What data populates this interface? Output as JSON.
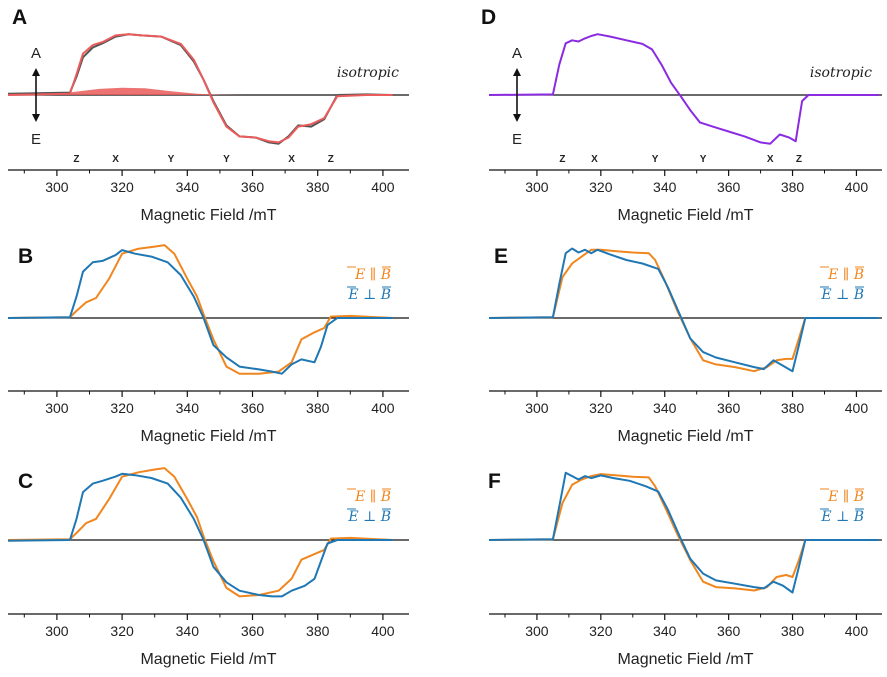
{
  "chart_data": [
    {
      "panel": "A",
      "type": "line",
      "xlabel": "Magnetic Field /mT",
      "xlim": [
        285,
        408
      ],
      "xticks": [
        300,
        320,
        340,
        360,
        380,
        400
      ],
      "ylim": [
        -1.1,
        1.2
      ],
      "axis_labels": {
        "top": "A",
        "bottom": "E"
      },
      "annotation": "isotropic",
      "canonical_markers": [
        {
          "label": "Z",
          "x": 306
        },
        {
          "label": "X",
          "x": 318
        },
        {
          "label": "Y",
          "x": 335
        },
        {
          "label": "Y",
          "x": 352
        },
        {
          "label": "X",
          "x": 372
        },
        {
          "label": "Z",
          "x": 384
        }
      ],
      "series": [
        {
          "color": "#555555",
          "width": 2.0,
          "x": [
            285,
            304,
            306,
            308,
            311,
            314,
            318,
            322,
            326,
            332,
            338,
            342,
            345,
            348,
            352,
            356,
            361,
            365,
            368,
            371,
            374,
            378,
            382,
            386,
            395,
            403
          ],
          "y": [
            0.02,
            0.04,
            0.3,
            0.62,
            0.78,
            0.85,
            0.96,
            1.0,
            0.98,
            0.96,
            0.82,
            0.55,
            0.25,
            -0.1,
            -0.5,
            -0.68,
            -0.7,
            -0.78,
            -0.8,
            -0.68,
            -0.5,
            -0.52,
            -0.4,
            0.0,
            0.01,
            0.0
          ]
        },
        {
          "color": "#ea5b5b",
          "width": 2.0,
          "x": [
            285,
            304,
            306,
            308,
            311,
            314,
            318,
            322,
            326,
            332,
            338,
            342,
            345,
            348,
            352,
            356,
            361,
            365,
            368,
            371,
            374,
            378,
            382,
            386,
            395,
            403
          ],
          "y": [
            0.0,
            0.02,
            0.34,
            0.68,
            0.82,
            0.87,
            0.98,
            1.0,
            0.98,
            0.96,
            0.84,
            0.58,
            0.25,
            -0.12,
            -0.52,
            -0.68,
            -0.7,
            -0.76,
            -0.78,
            -0.7,
            -0.52,
            -0.48,
            -0.38,
            -0.02,
            0.0,
            0.0
          ]
        }
      ],
      "fill": {
        "color": "#ea5b5b",
        "x": [
          285,
          295,
          305,
          313,
          320,
          327,
          335,
          343,
          350,
          358
        ],
        "y": [
          0.0,
          0.015,
          0.05,
          0.1,
          0.12,
          0.11,
          0.06,
          0.02,
          0.005,
          0.0
        ]
      }
    },
    {
      "panel": "B",
      "type": "line",
      "xlabel": "Magnetic Field /mT",
      "xlim": [
        285,
        408
      ],
      "xticks": [
        300,
        320,
        340,
        360,
        380,
        400
      ],
      "ylim": [
        -1.15,
        1.05
      ],
      "legend": [
        "E ∥ B",
        "E ⊥ B"
      ],
      "series": [
        {
          "color": "#f0861e",
          "width": 2.0,
          "x": [
            285,
            304,
            306,
            309,
            312,
            316,
            320,
            325,
            330,
            333,
            336,
            340,
            343,
            345,
            348,
            352,
            356,
            362,
            368,
            372,
            375,
            379,
            382,
            384,
            390,
            403
          ],
          "y": [
            0.0,
            0.01,
            0.1,
            0.22,
            0.28,
            0.55,
            0.9,
            0.97,
            1.0,
            1.02,
            0.9,
            0.55,
            0.3,
            0.05,
            -0.3,
            -0.68,
            -0.78,
            -0.78,
            -0.75,
            -0.62,
            -0.3,
            -0.2,
            -0.14,
            0.02,
            0.03,
            0.0
          ]
        },
        {
          "color": "#1f77b4",
          "width": 2.0,
          "x": [
            285,
            304,
            306,
            308,
            311,
            314,
            318,
            320,
            324,
            329,
            334,
            338,
            342,
            345,
            348,
            352,
            356,
            362,
            366,
            369,
            372,
            375,
            379,
            381,
            383,
            386,
            395,
            403
          ],
          "y": [
            0.0,
            0.01,
            0.3,
            0.65,
            0.78,
            0.8,
            0.88,
            0.95,
            0.9,
            0.86,
            0.78,
            0.6,
            0.3,
            0.0,
            -0.38,
            -0.55,
            -0.68,
            -0.72,
            -0.75,
            -0.78,
            -0.65,
            -0.58,
            -0.62,
            -0.4,
            -0.1,
            0.0,
            0.0,
            0.0
          ]
        }
      ]
    },
    {
      "panel": "C",
      "type": "line",
      "xlabel": "Magnetic Field /mT",
      "xlim": [
        285,
        408
      ],
      "xticks": [
        300,
        320,
        340,
        360,
        380,
        400
      ],
      "ylim": [
        -1.15,
        1.05
      ],
      "legend": [
        "E ∥ B",
        "E ⊥ B"
      ],
      "series": [
        {
          "color": "#f0861e",
          "width": 2.0,
          "x": [
            285,
            304,
            306,
            309,
            312,
            316,
            320,
            325,
            330,
            333,
            336,
            340,
            343,
            345,
            348,
            352,
            356,
            362,
            368,
            372,
            375,
            379,
            382,
            384,
            390,
            403
          ],
          "y": [
            0.0,
            0.01,
            0.1,
            0.24,
            0.3,
            0.58,
            0.9,
            0.96,
            1.0,
            1.02,
            0.9,
            0.58,
            0.32,
            0.05,
            -0.3,
            -0.68,
            -0.8,
            -0.78,
            -0.72,
            -0.55,
            -0.28,
            -0.2,
            -0.14,
            0.02,
            0.03,
            0.0
          ]
        },
        {
          "color": "#1f77b4",
          "width": 2.0,
          "x": [
            285,
            304,
            306,
            308,
            311,
            314,
            318,
            320,
            324,
            329,
            334,
            338,
            342,
            345,
            348,
            352,
            356,
            362,
            366,
            369,
            372,
            376,
            379,
            381,
            383,
            386,
            395,
            403
          ],
          "y": [
            -0.01,
            0.0,
            0.3,
            0.68,
            0.8,
            0.84,
            0.9,
            0.94,
            0.92,
            0.88,
            0.8,
            0.6,
            0.3,
            0.0,
            -0.38,
            -0.6,
            -0.72,
            -0.78,
            -0.8,
            -0.8,
            -0.72,
            -0.65,
            -0.55,
            -0.3,
            -0.05,
            0.0,
            0.0,
            0.0
          ]
        }
      ]
    },
    {
      "panel": "D",
      "type": "line",
      "xlabel": "Magnetic Field /mT",
      "xlim": [
        285,
        408
      ],
      "xticks": [
        300,
        320,
        340,
        360,
        380,
        400
      ],
      "ylim": [
        -1.1,
        1.2
      ],
      "axis_labels": {
        "top": "A",
        "bottom": "E"
      },
      "annotation": "isotropic",
      "canonical_markers": [
        {
          "label": "Z",
          "x": 308
        },
        {
          "label": "X",
          "x": 318
        },
        {
          "label": "Y",
          "x": 337
        },
        {
          "label": "Y",
          "x": 352
        },
        {
          "label": "X",
          "x": 373
        },
        {
          "label": "Z",
          "x": 382
        }
      ],
      "series": [
        {
          "color": "#8a2be2",
          "width": 2.0,
          "x": [
            285,
            305,
            307,
            309,
            311,
            313,
            315,
            317,
            319,
            323,
            328,
            333,
            336,
            339,
            342,
            345,
            348,
            351,
            355,
            360,
            365,
            370,
            373,
            376,
            379,
            381,
            383,
            385,
            395,
            407
          ],
          "y": [
            0.0,
            0.01,
            0.5,
            0.85,
            0.9,
            0.88,
            0.93,
            0.97,
            1.0,
            0.96,
            0.9,
            0.84,
            0.75,
            0.5,
            0.2,
            -0.02,
            -0.25,
            -0.45,
            -0.52,
            -0.6,
            -0.68,
            -0.78,
            -0.8,
            -0.65,
            -0.7,
            -0.76,
            -0.1,
            0.0,
            0.0,
            0.0
          ]
        }
      ]
    },
    {
      "panel": "E",
      "type": "line",
      "xlabel": "Magnetic Field /mT",
      "xlim": [
        285,
        408
      ],
      "xticks": [
        300,
        320,
        340,
        360,
        380,
        400
      ],
      "ylim": [
        -1.05,
        1.1
      ],
      "legend": [
        "E ∥ B",
        "E ⊥ B"
      ],
      "series": [
        {
          "color": "#f0861e",
          "width": 2.0,
          "x": [
            285,
            305,
            308,
            311,
            314,
            317,
            320,
            325,
            330,
            335,
            337,
            340,
            344,
            348,
            352,
            356,
            362,
            368,
            372,
            375,
            378,
            380,
            382,
            384,
            390,
            407
          ],
          "y": [
            0.0,
            0.01,
            0.6,
            0.8,
            0.9,
            1.0,
            1.0,
            0.98,
            0.96,
            0.95,
            0.85,
            0.55,
            0.1,
            -0.3,
            -0.62,
            -0.68,
            -0.72,
            -0.78,
            -0.72,
            -0.62,
            -0.6,
            -0.6,
            -0.3,
            0.0,
            0.0,
            0.0
          ]
        },
        {
          "color": "#1f77b4",
          "width": 2.0,
          "x": [
            285,
            305,
            307,
            309,
            311,
            313,
            315,
            317,
            319,
            323,
            328,
            333,
            338,
            341,
            345,
            348,
            352,
            356,
            362,
            368,
            371,
            374,
            377,
            380,
            382,
            384,
            390,
            407
          ],
          "y": [
            0.0,
            0.01,
            0.5,
            0.95,
            1.02,
            0.96,
            1.0,
            0.95,
            1.0,
            0.93,
            0.85,
            0.8,
            0.72,
            0.45,
            0.02,
            -0.3,
            -0.5,
            -0.58,
            -0.65,
            -0.72,
            -0.75,
            -0.62,
            -0.7,
            -0.78,
            -0.4,
            0.0,
            0.0,
            0.0
          ]
        }
      ]
    },
    {
      "panel": "F",
      "type": "line",
      "xlabel": "Magnetic Field /mT",
      "xlim": [
        285,
        408
      ],
      "xticks": [
        300,
        320,
        340,
        360,
        380,
        400
      ],
      "ylim": [
        -1.05,
        1.1
      ],
      "legend": [
        "E ∥ B",
        "E ⊥ B"
      ],
      "series": [
        {
          "color": "#f0861e",
          "width": 2.0,
          "x": [
            285,
            305,
            308,
            311,
            314,
            317,
            320,
            325,
            330,
            335,
            337,
            340,
            344,
            348,
            352,
            356,
            362,
            368,
            372,
            375,
            378,
            380,
            382,
            384,
            390,
            407
          ],
          "y": [
            0.0,
            0.01,
            0.55,
            0.82,
            0.9,
            0.95,
            0.98,
            0.96,
            0.94,
            0.93,
            0.8,
            0.5,
            0.08,
            -0.3,
            -0.62,
            -0.7,
            -0.72,
            -0.75,
            -0.7,
            -0.55,
            -0.52,
            -0.55,
            -0.3,
            0.0,
            0.0,
            0.0
          ]
        },
        {
          "color": "#1f77b4",
          "width": 2.0,
          "x": [
            285,
            305,
            307,
            309,
            311,
            313,
            315,
            317,
            320,
            324,
            329,
            334,
            338,
            341,
            345,
            348,
            352,
            356,
            362,
            368,
            371,
            374,
            377,
            380,
            382,
            384,
            390,
            407
          ],
          "y": [
            0.0,
            0.01,
            0.5,
            1.0,
            0.95,
            0.9,
            0.95,
            0.92,
            0.96,
            0.92,
            0.88,
            0.8,
            0.72,
            0.45,
            0.02,
            -0.28,
            -0.5,
            -0.6,
            -0.65,
            -0.7,
            -0.72,
            -0.62,
            -0.68,
            -0.78,
            -0.4,
            0.0,
            0.0,
            0.0
          ]
        }
      ]
    }
  ]
}
